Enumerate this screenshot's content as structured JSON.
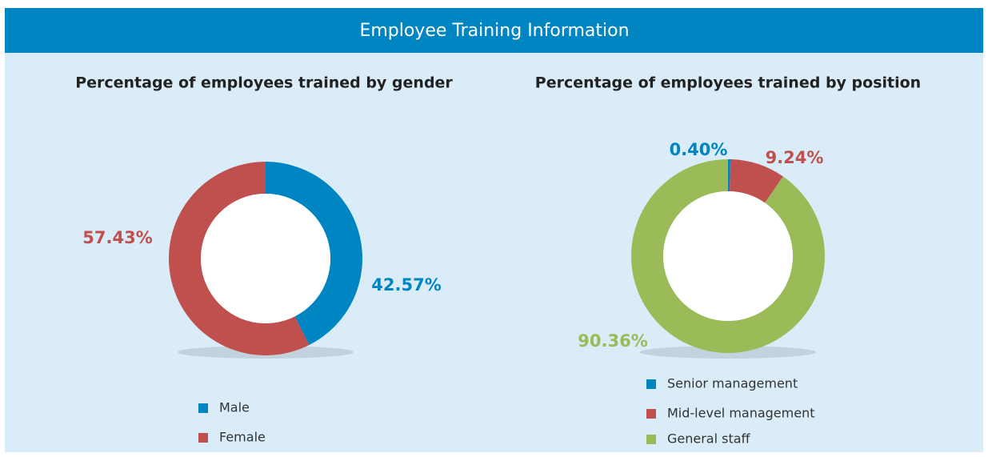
{
  "title": "Employee Training Information",
  "chart_data": [
    {
      "type": "donut",
      "title": "Percentage of employees trained by gender",
      "categories": [
        "Male",
        "Female"
      ],
      "values": [
        42.57,
        57.43
      ],
      "value_labels": [
        "42.57%",
        "57.43%"
      ],
      "colors": [
        "#0085c3",
        "#c0504d"
      ]
    },
    {
      "type": "donut",
      "title": "Percentage of employees trained by position",
      "categories": [
        "Senior management",
        "Mid-level management",
        "General staff"
      ],
      "values": [
        0.4,
        9.24,
        90.36
      ],
      "value_labels": [
        "0.40%",
        "9.24%",
        "90.36%"
      ],
      "colors": [
        "#0085c3",
        "#c0504d",
        "#9bbb59"
      ]
    }
  ]
}
